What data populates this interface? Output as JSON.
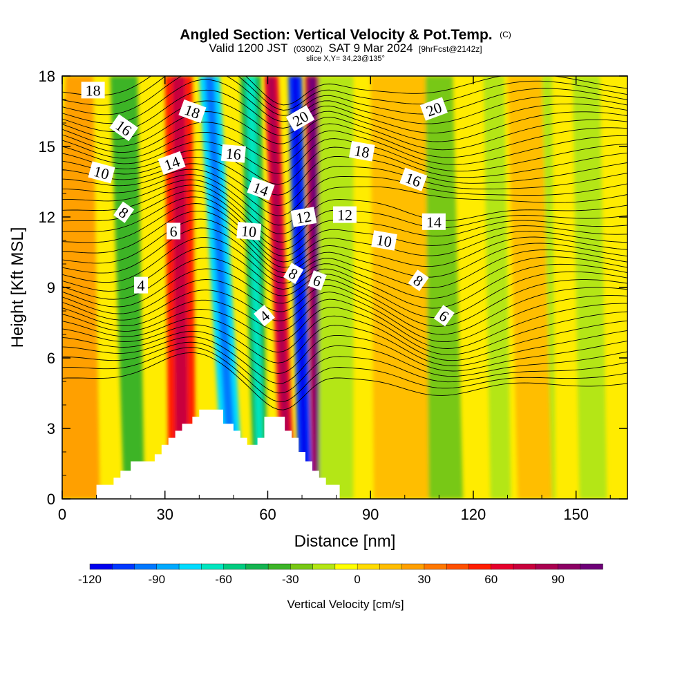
{
  "title": {
    "main": "Angled Section: Vertical Velocity & Pot.Temp.",
    "main_suffix": "(C)",
    "valid_prefix": "Valid 1200 JST",
    "valid_zulu": "(0300Z)",
    "valid_date": "SAT 9 Mar 2024",
    "forecast": "[9hrFcst@2142z]",
    "slice": "slice X,Y= 34,23@135°"
  },
  "chart_data": {
    "type": "heatmap",
    "title": "Angled Section: Vertical Velocity & Pot.Temp. (C)",
    "xlabel": "Distance [nm]",
    "ylabel": "Height [Kft MSL]",
    "xlim": [
      0,
      165
    ],
    "ylim": [
      0,
      18
    ],
    "x_ticks": [
      0,
      30,
      60,
      90,
      120,
      150
    ],
    "x_tick_labels": [
      "0",
      "30",
      "60",
      "90",
      "120",
      "150"
    ],
    "y_ticks": [
      0,
      3,
      6,
      9,
      12,
      15,
      18
    ],
    "y_tick_labels": [
      "0",
      "3",
      "6",
      "9",
      "12",
      "15",
      "18"
    ],
    "colorbar": {
      "label": "Vertical Velocity [cm/s]",
      "min": -120,
      "max": 110,
      "step": 10,
      "tick_values": [
        -120,
        -90,
        -60,
        -30,
        0,
        30,
        60,
        90
      ],
      "tick_labels": [
        "-120",
        "-90",
        "-60",
        "-30",
        "0",
        "30",
        "60",
        "90"
      ],
      "colors": [
        "#0000ee",
        "#0038ff",
        "#0078ff",
        "#00aaff",
        "#00dcff",
        "#00e6c0",
        "#00cc80",
        "#14b450",
        "#3cb428",
        "#78c814",
        "#b4e614",
        "#ffff00",
        "#ffdc00",
        "#ffbe00",
        "#ffa000",
        "#ff7800",
        "#ff5000",
        "#ff1e00",
        "#e6002d",
        "#c8003c",
        "#aa0050",
        "#8c0064",
        "#6e0078"
      ]
    },
    "vertical_velocity_bands": [
      {
        "x_low": 8,
        "x_top": 6,
        "width_low": 3,
        "width_top": 3,
        "value": -20
      },
      {
        "x_low": 21,
        "x_top": 18,
        "width_low": 3,
        "width_top": 4,
        "value": -35
      },
      {
        "x_low": 35,
        "x_top": 34,
        "width_low": 4,
        "width_top": 4,
        "value": 55
      },
      {
        "x_low": 50,
        "x_top": 43,
        "width_low": 3,
        "width_top": 3,
        "value": -75
      },
      {
        "x_low": 58,
        "x_top": 55,
        "width_low": 2,
        "width_top": 3,
        "value": -50
      },
      {
        "x_low": 66,
        "x_top": 61,
        "width_low": 2,
        "width_top": 2,
        "value": 60
      },
      {
        "x_low": 71,
        "x_top": 68,
        "width_low": 2,
        "width_top": 2,
        "value": -110
      },
      {
        "x_low": 75,
        "x_top": 73,
        "width_low": 2,
        "width_top": 2,
        "value": 80
      },
      {
        "x_low": 80,
        "x_top": 80,
        "width_low": 5,
        "width_top": 5,
        "value": -20
      },
      {
        "x_low": 110,
        "x_top": 108,
        "width_low": 7,
        "width_top": 6,
        "value": -25
      },
      {
        "x_low": 128,
        "x_top": 126,
        "width_low": 3,
        "width_top": 3,
        "value": -15
      },
      {
        "x_low": 141,
        "x_top": 140,
        "width_low": 3,
        "width_top": 3,
        "value": -12
      },
      {
        "x_low": 155,
        "x_top": 153,
        "width_low": 4,
        "width_top": 4,
        "value": -15
      },
      {
        "x_low": 3,
        "x_top": 5,
        "width_low": 8,
        "width_top": 4,
        "value": 25
      },
      {
        "x_low": 99,
        "x_top": 98,
        "width_low": 8,
        "width_top": 8,
        "value": 18
      },
      {
        "x_low": 138,
        "x_top": 135,
        "width_low": 5,
        "width_top": 5,
        "value": 15
      }
    ],
    "contour_labels": [
      {
        "text": "18",
        "x": 9,
        "y": 17.4,
        "angle": 0
      },
      {
        "text": "16",
        "x": 18,
        "y": 15.8,
        "angle": 35
      },
      {
        "text": "10",
        "x": 11.5,
        "y": 13.9,
        "angle": 15
      },
      {
        "text": "8",
        "x": 18,
        "y": 12.2,
        "angle": 35
      },
      {
        "text": "4",
        "x": 23,
        "y": 9.1,
        "angle": 0
      },
      {
        "text": "18",
        "x": 38,
        "y": 16.5,
        "angle": 20
      },
      {
        "text": "14",
        "x": 32,
        "y": 14.3,
        "angle": -20
      },
      {
        "text": "6",
        "x": 32.5,
        "y": 11.4,
        "angle": 0
      },
      {
        "text": "16",
        "x": 50,
        "y": 14.7,
        "angle": 5
      },
      {
        "text": "14",
        "x": 58,
        "y": 13.2,
        "angle": 20
      },
      {
        "text": "10",
        "x": 54.5,
        "y": 11.4,
        "angle": 5
      },
      {
        "text": "4",
        "x": 59,
        "y": 7.8,
        "angle": -40
      },
      {
        "text": "20",
        "x": 69.5,
        "y": 16.2,
        "angle": -30
      },
      {
        "text": "12",
        "x": 70.5,
        "y": 12.0,
        "angle": -10
      },
      {
        "text": "8",
        "x": 67.5,
        "y": 9.6,
        "angle": 30
      },
      {
        "text": "6",
        "x": 74.5,
        "y": 9.3,
        "angle": 20
      },
      {
        "text": "12",
        "x": 82.5,
        "y": 12.1,
        "angle": 0
      },
      {
        "text": "18",
        "x": 87.5,
        "y": 14.8,
        "angle": 10
      },
      {
        "text": "10",
        "x": 94,
        "y": 11.0,
        "angle": 10
      },
      {
        "text": "20",
        "x": 108.5,
        "y": 16.6,
        "angle": -20
      },
      {
        "text": "16",
        "x": 102.5,
        "y": 13.6,
        "angle": 20
      },
      {
        "text": "14",
        "x": 108.5,
        "y": 11.8,
        "angle": 0
      },
      {
        "text": "8",
        "x": 104,
        "y": 9.3,
        "angle": 35
      },
      {
        "text": "6",
        "x": 111.5,
        "y": 7.8,
        "angle": 35
      }
    ],
    "terrain_profile": [
      [
        10,
        0.3
      ],
      [
        10,
        0.6
      ],
      [
        15,
        0.6
      ],
      [
        15,
        0.9
      ],
      [
        17,
        0.9
      ],
      [
        17,
        1.2
      ],
      [
        20,
        1.2
      ],
      [
        20,
        1.6
      ],
      [
        27,
        1.6
      ],
      [
        27,
        1.9
      ],
      [
        29,
        1.9
      ],
      [
        29,
        2.3
      ],
      [
        31,
        2.3
      ],
      [
        31,
        2.6
      ],
      [
        33,
        2.6
      ],
      [
        33,
        2.9
      ],
      [
        35,
        2.9
      ],
      [
        35,
        3.2
      ],
      [
        38,
        3.2
      ],
      [
        38,
        3.5
      ],
      [
        40,
        3.5
      ],
      [
        40,
        3.8
      ],
      [
        47,
        3.8
      ],
      [
        47,
        3.2
      ],
      [
        50,
        3.2
      ],
      [
        50,
        2.9
      ],
      [
        52,
        2.9
      ],
      [
        52,
        2.6
      ],
      [
        54,
        2.6
      ],
      [
        54,
        2.3
      ],
      [
        57,
        2.3
      ],
      [
        57,
        2.6
      ],
      [
        59,
        2.6
      ],
      [
        59,
        3.5
      ],
      [
        65,
        3.5
      ],
      [
        65,
        2.9
      ],
      [
        67,
        2.9
      ],
      [
        67,
        2.6
      ],
      [
        69,
        2.6
      ],
      [
        69,
        2.0
      ],
      [
        71,
        2.0
      ],
      [
        71,
        1.6
      ],
      [
        73,
        1.6
      ],
      [
        73,
        1.2
      ],
      [
        75,
        1.2
      ],
      [
        75,
        0.9
      ],
      [
        77,
        0.9
      ],
      [
        77,
        0.6
      ],
      [
        81,
        0.6
      ],
      [
        81,
        0.3
      ]
    ],
    "isentrope_levels_C": [
      4,
      6,
      8,
      10,
      12,
      14,
      16,
      18,
      20
    ]
  },
  "colors": {
    "background": "#ffffff",
    "frame": "#000000",
    "contour_line": "#000000",
    "terrain": "#ffffff",
    "base_field": "#ffec00"
  }
}
